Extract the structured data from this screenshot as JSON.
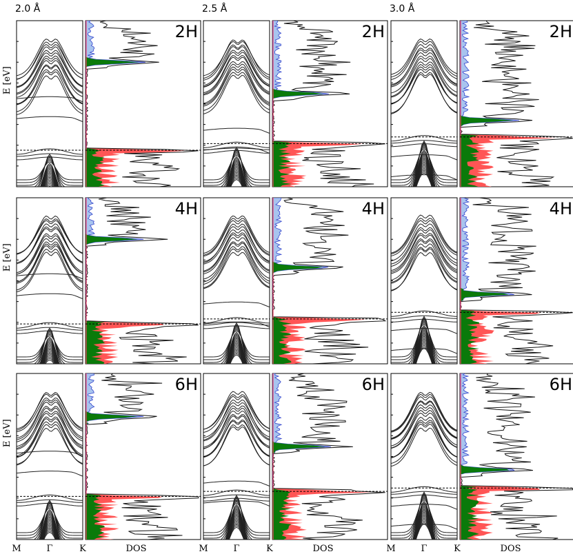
{
  "chart_data": {
    "type": "line",
    "panel_kind": "band structure + density of states",
    "columns": [
      "2.0 Å",
      "2.5 Å",
      "3.0 Å"
    ],
    "rows": [
      "2H",
      "4H",
      "6H"
    ],
    "ylabel": "E [eV]",
    "band_xticks": [
      "M",
      "Γ",
      "K"
    ],
    "dos_xlabel": "DOS",
    "fermi_level": "dashed",
    "colors": {
      "total": "#000000",
      "red": "#ff5555",
      "green": "#0a7a0a",
      "blue": "#a8c4ee",
      "blue_edge": "#3344cc",
      "fermi_axis": "#ee4466"
    },
    "gap_fraction": {
      "2.0 Å": {
        "2H": 0.78,
        "4H": 0.76,
        "6H": 0.74
      },
      "2.5 Å": {
        "2H": 0.74,
        "4H": 0.73,
        "6H": 0.71
      },
      "3.0 Å": {
        "2H": 0.7,
        "4H": 0.69,
        "6H": 0.69
      }
    },
    "impurity_band_fraction": {
      "2.0 Å": {
        "2H": 0.25,
        "4H": 0.25,
        "6H": 0.26
      },
      "2.5 Å": {
        "2H": 0.44,
        "4H": 0.42,
        "6H": 0.44
      },
      "3.0 Å": {
        "2H": 0.6,
        "4H": 0.58,
        "6H": 0.58
      }
    }
  }
}
